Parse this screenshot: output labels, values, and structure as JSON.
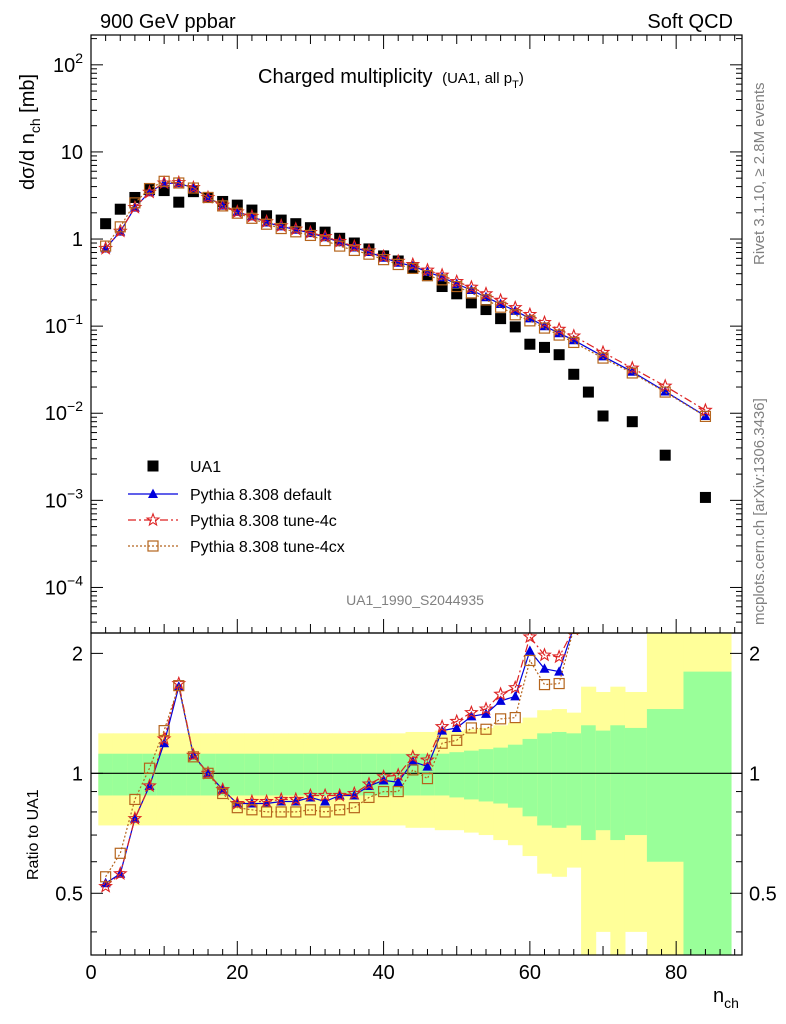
{
  "header": {
    "left": "900 GeV ppbar",
    "right": "Soft QCD"
  },
  "side_labels": {
    "rivet": "Rivet 3.1.10, ≥ 2.8M events",
    "mcplots": "mcplots.cern.ch [arXiv:1306.3436]"
  },
  "chart_data": [
    {
      "type": "scatter",
      "panel": "main",
      "title": "Charged multiplicity",
      "title_suffix": "(UA1, all p",
      "title_suffix_sub": "T",
      "title_suffix_close": ")",
      "analysis_id": "UA1_1990_S2044935",
      "ylabel": "dσ/d n",
      "ylabel_sub": "ch",
      "ylabel_unit": " [mb]",
      "yscale": "log",
      "ylim": [
        3e-05,
        220
      ],
      "xlim": [
        0,
        89
      ],
      "y_tick_labels": [
        {
          "value": 0.0001,
          "mantissa": "10",
          "exp": "−4"
        },
        {
          "value": 0.001,
          "mantissa": "10",
          "exp": "−3"
        },
        {
          "value": 0.01,
          "mantissa": "10",
          "exp": "−2"
        },
        {
          "value": 0.1,
          "mantissa": "10",
          "exp": "−1"
        },
        {
          "value": 1,
          "mantissa": "1",
          "exp": ""
        },
        {
          "value": 10,
          "mantissa": "10",
          "exp": ""
        },
        {
          "value": 100,
          "mantissa": "10",
          "exp": "2"
        }
      ],
      "legend_position": "lower-left",
      "series": [
        {
          "name": "UA1",
          "style": "data",
          "color": "#000000",
          "marker": "filled-square",
          "x": [
            2,
            4,
            6,
            8,
            10,
            12,
            14,
            16,
            18,
            20,
            22,
            24,
            26,
            28,
            30,
            32,
            34,
            36,
            38,
            40,
            42,
            44,
            46,
            48,
            50,
            52,
            54,
            56,
            58,
            60,
            62,
            64,
            66,
            68,
            70,
            74,
            78.5,
            84
          ],
          "y": [
            1.5,
            2.2,
            3.0,
            3.7,
            3.6,
            2.65,
            3.5,
            3.0,
            2.7,
            2.45,
            2.15,
            1.85,
            1.65,
            1.5,
            1.35,
            1.2,
            1.02,
            0.9,
            0.77,
            0.64,
            0.56,
            0.47,
            0.38,
            0.285,
            0.235,
            0.185,
            0.155,
            0.122,
            0.098,
            0.062,
            0.057,
            0.047,
            0.028,
            0.0175,
            0.0093,
            0.008,
            0.0033,
            0.00108
          ]
        },
        {
          "name": "Pythia 8.308 default",
          "style": "solid",
          "color": "#0000dd",
          "marker": "filled-triangle",
          "x": [
            2,
            4,
            6,
            8,
            10,
            12,
            14,
            16,
            18,
            20,
            22,
            24,
            26,
            28,
            30,
            32,
            34,
            36,
            38,
            40,
            42,
            44,
            46,
            48,
            50,
            52,
            54,
            56,
            58,
            60,
            62,
            64,
            66,
            70,
            74,
            78.5,
            84
          ],
          "y": [
            0.78,
            1.22,
            2.3,
            3.45,
            4.35,
            4.38,
            3.85,
            3.0,
            2.42,
            2.05,
            1.82,
            1.55,
            1.4,
            1.28,
            1.17,
            1.05,
            0.92,
            0.8,
            0.71,
            0.61,
            0.535,
            0.49,
            0.42,
            0.365,
            0.305,
            0.26,
            0.215,
            0.18,
            0.15,
            0.123,
            0.1,
            0.083,
            0.069,
            0.045,
            0.03,
            0.0178,
            0.0093
          ]
        },
        {
          "name": "Pythia 8.308 tune-4c",
          "style": "dashdot",
          "color": "#dd2222",
          "marker": "open-star",
          "x": [
            2,
            4,
            6,
            8,
            10,
            12,
            14,
            16,
            18,
            20,
            22,
            24,
            26,
            28,
            30,
            32,
            34,
            36,
            38,
            40,
            42,
            44,
            46,
            48,
            50,
            52,
            54,
            56,
            58,
            60,
            62,
            64,
            66,
            70,
            74,
            78.5,
            84
          ],
          "y": [
            0.78,
            1.23,
            2.3,
            3.45,
            4.4,
            4.45,
            3.9,
            3.0,
            2.45,
            2.05,
            1.82,
            1.58,
            1.42,
            1.3,
            1.19,
            1.07,
            0.94,
            0.82,
            0.73,
            0.63,
            0.555,
            0.51,
            0.44,
            0.385,
            0.325,
            0.28,
            0.235,
            0.198,
            0.163,
            0.136,
            0.11,
            0.092,
            0.077,
            0.05,
            0.033,
            0.0205,
            0.0108
          ]
        },
        {
          "name": "Pythia 8.308 tune-4cx",
          "style": "dotted",
          "color": "#b5651d",
          "marker": "open-square",
          "x": [
            2,
            4,
            6,
            8,
            10,
            12,
            14,
            16,
            18,
            20,
            22,
            24,
            26,
            28,
            30,
            32,
            34,
            36,
            38,
            40,
            42,
            44,
            46,
            48,
            50,
            52,
            54,
            56,
            58,
            60,
            62,
            64,
            66,
            70,
            74,
            78.5,
            84
          ],
          "y": [
            0.83,
            1.38,
            2.6,
            3.8,
            4.6,
            4.4,
            3.85,
            3.0,
            2.4,
            1.98,
            1.73,
            1.48,
            1.32,
            1.21,
            1.1,
            0.96,
            0.83,
            0.74,
            0.67,
            0.58,
            0.51,
            0.46,
            0.38,
            0.34,
            0.285,
            0.24,
            0.2,
            0.165,
            0.135,
            0.115,
            0.095,
            0.079,
            0.065,
            0.043,
            0.029,
            0.0175,
            0.0092
          ]
        }
      ]
    },
    {
      "type": "line",
      "panel": "ratio",
      "ylabel": "Ratio to UA1",
      "xlabel": "n",
      "xlabel_sub": "ch",
      "ylim": [
        0.35,
        2.25
      ],
      "xlim": [
        0,
        89
      ],
      "x_ticks": [
        0,
        20,
        40,
        60,
        80
      ],
      "y_ticks": [
        0.5,
        1,
        2
      ],
      "reference_line": 1,
      "band_edges": [
        1,
        3,
        5,
        7,
        9,
        11,
        13,
        15,
        17,
        19,
        21,
        23,
        25,
        27,
        29,
        31,
        33,
        35,
        37,
        39,
        41,
        43,
        45,
        47,
        49,
        51,
        53,
        55,
        57,
        59,
        61,
        63,
        65,
        67,
        69,
        71,
        73,
        76,
        81,
        87.5
      ],
      "band_stat_lo": [
        0.88,
        0.88,
        0.88,
        0.88,
        0.88,
        0.88,
        0.88,
        0.88,
        0.88,
        0.88,
        0.88,
        0.88,
        0.88,
        0.88,
        0.88,
        0.88,
        0.88,
        0.88,
        0.88,
        0.88,
        0.88,
        0.88,
        0.88,
        0.88,
        0.87,
        0.86,
        0.85,
        0.84,
        0.82,
        0.78,
        0.74,
        0.73,
        0.74,
        0.68,
        0.72,
        0.68,
        0.7,
        0.6,
        0.35
      ],
      "band_stat_hi": [
        1.12,
        1.12,
        1.12,
        1.12,
        1.12,
        1.12,
        1.12,
        1.12,
        1.12,
        1.12,
        1.12,
        1.12,
        1.12,
        1.12,
        1.12,
        1.12,
        1.12,
        1.12,
        1.12,
        1.12,
        1.12,
        1.12,
        1.12,
        1.12,
        1.13,
        1.14,
        1.15,
        1.16,
        1.18,
        1.22,
        1.26,
        1.27,
        1.26,
        1.32,
        1.28,
        1.32,
        1.3,
        1.45,
        1.8
      ],
      "band_tot_lo": [
        0.74,
        0.74,
        0.74,
        0.74,
        0.74,
        0.74,
        0.74,
        0.74,
        0.74,
        0.74,
        0.74,
        0.74,
        0.74,
        0.74,
        0.74,
        0.74,
        0.74,
        0.74,
        0.74,
        0.74,
        0.74,
        0.73,
        0.73,
        0.72,
        0.72,
        0.71,
        0.7,
        0.68,
        0.66,
        0.62,
        0.56,
        0.55,
        0.58,
        0.35,
        0.4,
        0.35,
        0.4,
        0.35,
        0.35
      ],
      "band_tot_hi": [
        1.26,
        1.26,
        1.26,
        1.26,
        1.26,
        1.26,
        1.26,
        1.26,
        1.26,
        1.26,
        1.26,
        1.26,
        1.26,
        1.26,
        1.26,
        1.26,
        1.26,
        1.26,
        1.26,
        1.26,
        1.26,
        1.27,
        1.27,
        1.28,
        1.28,
        1.29,
        1.3,
        1.32,
        1.34,
        1.38,
        1.44,
        1.45,
        1.42,
        1.65,
        1.6,
        1.65,
        1.6,
        2.25,
        2.25
      ],
      "band_colors": {
        "stat": "#99ff99",
        "total": "#ffff99"
      },
      "series": [
        {
          "name": "Pythia 8.308 default",
          "color": "#0000dd",
          "marker": "filled-triangle",
          "style": "solid",
          "x": [
            2,
            4,
            6,
            8,
            10,
            12,
            14,
            16,
            18,
            20,
            22,
            24,
            26,
            28,
            30,
            32,
            34,
            36,
            38,
            40,
            42,
            44,
            46,
            48,
            50,
            52,
            54,
            56,
            58,
            60,
            62,
            64,
            66
          ],
          "y": [
            0.53,
            0.56,
            0.77,
            0.93,
            1.19,
            1.65,
            1.11,
            1.0,
            0.91,
            0.84,
            0.84,
            0.84,
            0.85,
            0.85,
            0.87,
            0.85,
            0.88,
            0.88,
            0.93,
            0.96,
            0.95,
            1.07,
            1.04,
            1.28,
            1.3,
            1.39,
            1.41,
            1.52,
            1.56,
            2.03,
            1.83,
            1.8,
            2.33
          ]
        },
        {
          "name": "Pythia 8.308 tune-4c",
          "color": "#dd2222",
          "marker": "open-star",
          "style": "dashdot",
          "x": [
            2,
            4,
            6,
            8,
            10,
            12,
            14,
            16,
            18,
            20,
            22,
            24,
            26,
            28,
            30,
            32,
            34,
            36,
            38,
            40,
            42,
            44,
            46,
            48,
            50,
            52,
            54,
            56,
            58,
            60,
            62,
            64,
            66
          ],
          "y": [
            0.52,
            0.56,
            0.77,
            0.93,
            1.22,
            1.68,
            1.11,
            1.0,
            0.91,
            0.84,
            0.85,
            0.85,
            0.86,
            0.86,
            0.88,
            0.88,
            0.88,
            0.89,
            0.94,
            0.98,
            0.99,
            1.1,
            1.08,
            1.31,
            1.35,
            1.42,
            1.45,
            1.58,
            1.64,
            2.2,
            1.98,
            1.96,
            2.3
          ]
        },
        {
          "name": "Pythia 8.308 tune-4cx",
          "color": "#b5651d",
          "marker": "open-square",
          "style": "dotted",
          "x": [
            2,
            4,
            6,
            8,
            10,
            12,
            14,
            16,
            18,
            20,
            22,
            24,
            26,
            28,
            30,
            32,
            34,
            36,
            38,
            40,
            42,
            44,
            46,
            48,
            50,
            52,
            54,
            56,
            58,
            60,
            62,
            64,
            66
          ],
          "y": [
            0.55,
            0.63,
            0.86,
            1.03,
            1.28,
            1.66,
            1.1,
            1.0,
            0.89,
            0.82,
            0.81,
            0.8,
            0.8,
            0.8,
            0.81,
            0.8,
            0.81,
            0.82,
            0.87,
            0.9,
            0.9,
            1.02,
            0.97,
            1.19,
            1.21,
            1.3,
            1.29,
            1.37,
            1.38,
            1.92,
            1.67,
            1.68,
            2.31
          ]
        }
      ]
    }
  ]
}
